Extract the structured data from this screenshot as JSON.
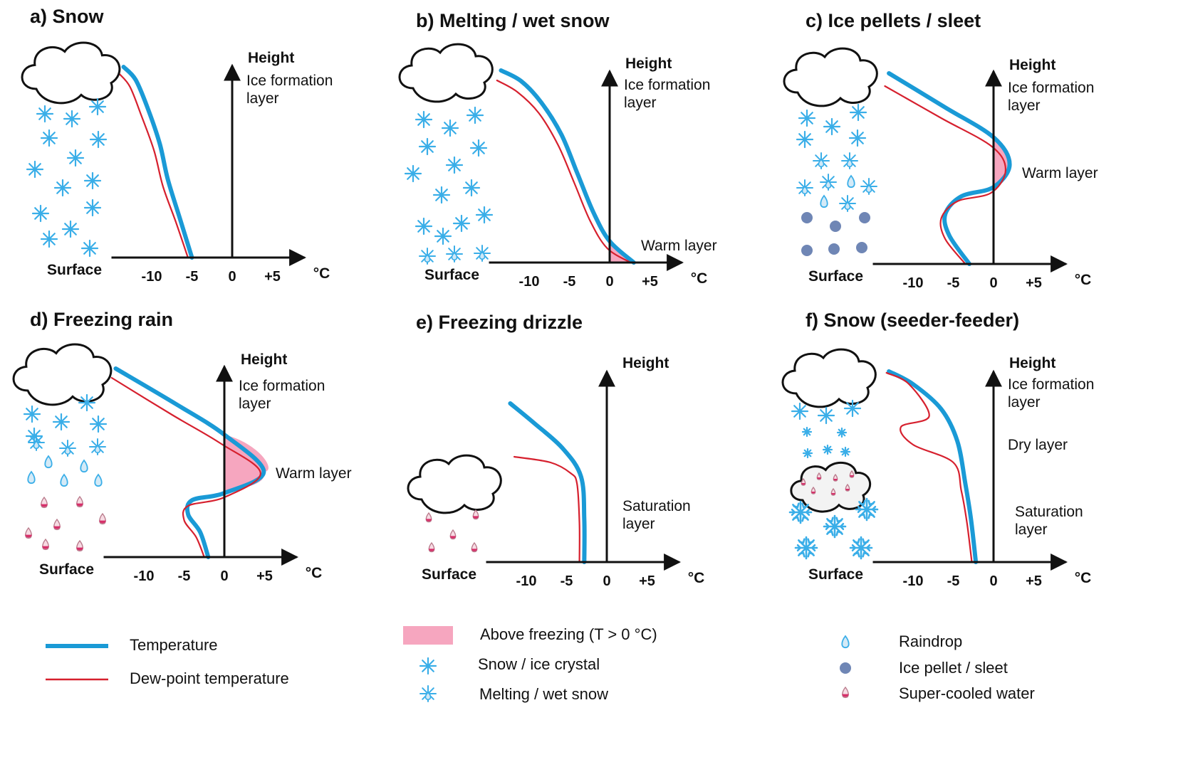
{
  "colors": {
    "temperature": "#1a9ad6",
    "dewpoint": "#d6202e",
    "above_freezing": "#f6a6bf",
    "snow": "#3aaee8",
    "pellet": "#6f86b5",
    "supercooled": "#d6306a"
  },
  "panels": [
    {
      "id": "a",
      "title": "a) Snow",
      "height_label": "Height",
      "surface_label": "Surface",
      "unit": "°C",
      "ticks": [
        "-10",
        "-5",
        "0",
        "+5"
      ],
      "layers": [
        "Ice formation layer"
      ]
    },
    {
      "id": "b",
      "title": "b) Melting / wet snow",
      "height_label": "Height",
      "surface_label": "Surface",
      "unit": "°C",
      "ticks": [
        "-10",
        "-5",
        "0",
        "+5"
      ],
      "layers": [
        "Ice formation layer",
        "Warm layer"
      ]
    },
    {
      "id": "c",
      "title": "c) Ice pellets / sleet",
      "height_label": "Height",
      "surface_label": "Surface",
      "unit": "°C",
      "ticks": [
        "-10",
        "-5",
        "0",
        "+5"
      ],
      "layers": [
        "Ice formation layer",
        "Warm layer"
      ]
    },
    {
      "id": "d",
      "title": "d) Freezing rain",
      "height_label": "Height",
      "surface_label": "Surface",
      "unit": "°C",
      "ticks": [
        "-10",
        "-5",
        "0",
        "+5"
      ],
      "layers": [
        "Ice formation layer",
        "Warm layer"
      ]
    },
    {
      "id": "e",
      "title": "e) Freezing drizzle",
      "height_label": "Height",
      "surface_label": "Surface",
      "unit": "°C",
      "ticks": [
        "-10",
        "-5",
        "0",
        "+5"
      ],
      "layers": [
        "Saturation layer"
      ]
    },
    {
      "id": "f",
      "title": "f) Snow (seeder-feeder)",
      "height_label": "Height",
      "surface_label": "Surface",
      "unit": "°C",
      "ticks": [
        "-10",
        "-5",
        "0",
        "+5"
      ],
      "layers": [
        "Ice formation layer",
        "Dry layer",
        "Saturation layer"
      ]
    }
  ],
  "legend": {
    "temperature": "Temperature",
    "dewpoint": "Dew-point temperature",
    "above_freezing": "Above freezing (T > 0 °C)",
    "snow": "Snow / ice crystal",
    "wet_snow": "Melting / wet snow",
    "raindrop": "Raindrop",
    "pellet": "Ice pellet / sleet",
    "supercooled": "Super-cooled water"
  }
}
